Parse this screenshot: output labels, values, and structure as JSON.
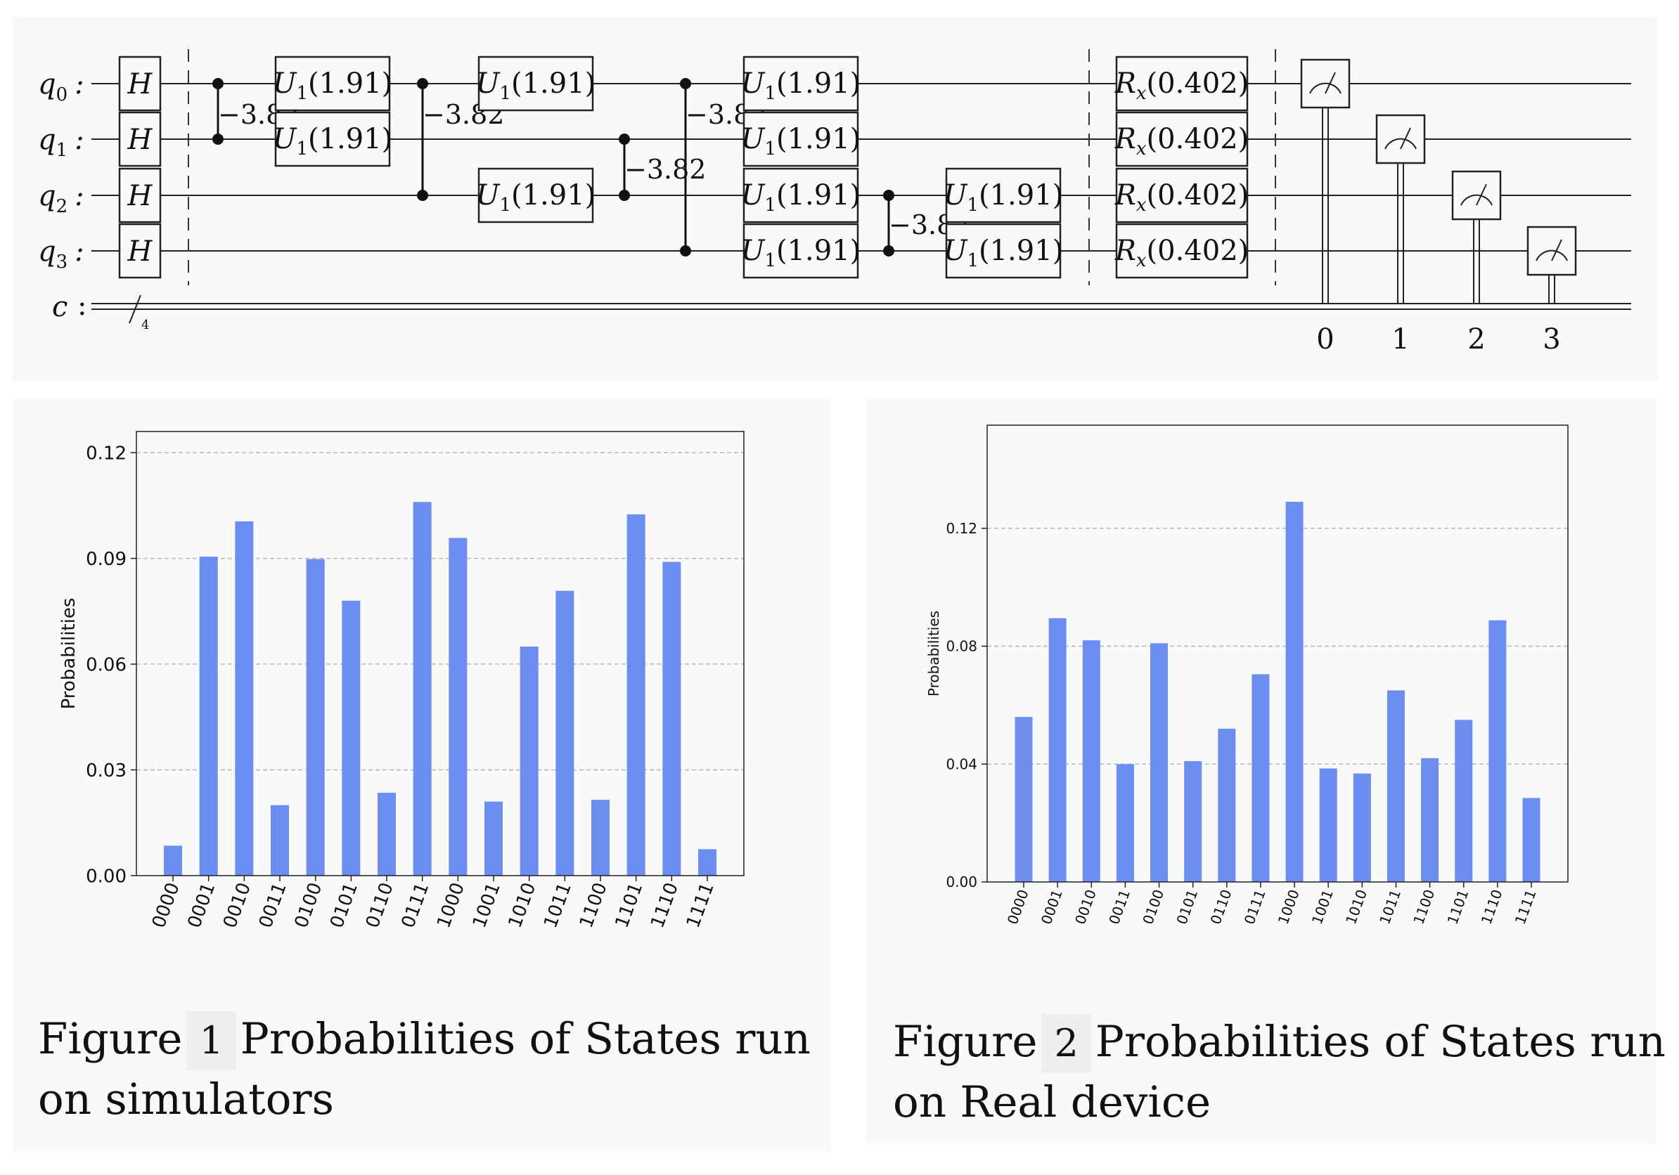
{
  "circuit": {
    "qubits": [
      "q",
      "q",
      "q",
      "q"
    ],
    "qubit_indices": [
      "0",
      "1",
      "2",
      "3"
    ],
    "classical_register": "c",
    "classical_width": "4",
    "hadamard": "H",
    "u1_gate": "U",
    "u1_sub": "1",
    "u1_arg": "(1.91)",
    "rx_gate": "R",
    "rx_sub": "x",
    "rx_arg": "(0.402)",
    "cphase": "−3.82",
    "measure_labels": [
      "0",
      "1",
      "2",
      "3"
    ]
  },
  "chart_data": [
    {
      "type": "bar",
      "categories": [
        "0000",
        "0001",
        "0010",
        "0011",
        "0100",
        "0101",
        "0110",
        "0111",
        "1000",
        "1001",
        "1010",
        "1011",
        "1100",
        "1101",
        "1110",
        "1111"
      ],
      "values": [
        0.0085,
        0.0905,
        0.1005,
        0.02,
        0.0898,
        0.078,
        0.0235,
        0.106,
        0.0958,
        0.021,
        0.065,
        0.0808,
        0.0215,
        0.1025,
        0.089,
        0.0075
      ],
      "ylabel": "Probabilities",
      "ylim": [
        0,
        0.126
      ],
      "yticks": [
        "0.00",
        "0.03",
        "0.06",
        "0.09",
        "0.12"
      ],
      "ytick_values": [
        0,
        0.03,
        0.06,
        0.09,
        0.12
      ],
      "color": "#6b8ef0",
      "grid": true
    },
    {
      "type": "bar",
      "categories": [
        "0000",
        "0001",
        "0010",
        "0011",
        "0100",
        "0101",
        "0110",
        "0111",
        "1000",
        "1001",
        "1010",
        "1011",
        "1100",
        "1101",
        "1110",
        "1111"
      ],
      "values": [
        0.056,
        0.0895,
        0.082,
        0.04,
        0.081,
        0.041,
        0.052,
        0.0705,
        0.129,
        0.0385,
        0.0368,
        0.065,
        0.042,
        0.055,
        0.0888,
        0.0285
      ],
      "ylabel": "Probabilities",
      "ylim": [
        0,
        0.155
      ],
      "yticks": [
        "0.00",
        "0.04",
        "0.08",
        "0.12"
      ],
      "ytick_values": [
        0,
        0.04,
        0.08,
        0.12
      ],
      "color": "#6b8ef0",
      "grid": true
    }
  ],
  "captions": [
    {
      "prefix": "Figure",
      "number": "1",
      "line1_rest": "Probabilities of States run",
      "line2": "on simulators"
    },
    {
      "prefix": "Figure",
      "number": "2",
      "line1_rest": "Probabilities of States run",
      "line2": "on Real device"
    }
  ]
}
